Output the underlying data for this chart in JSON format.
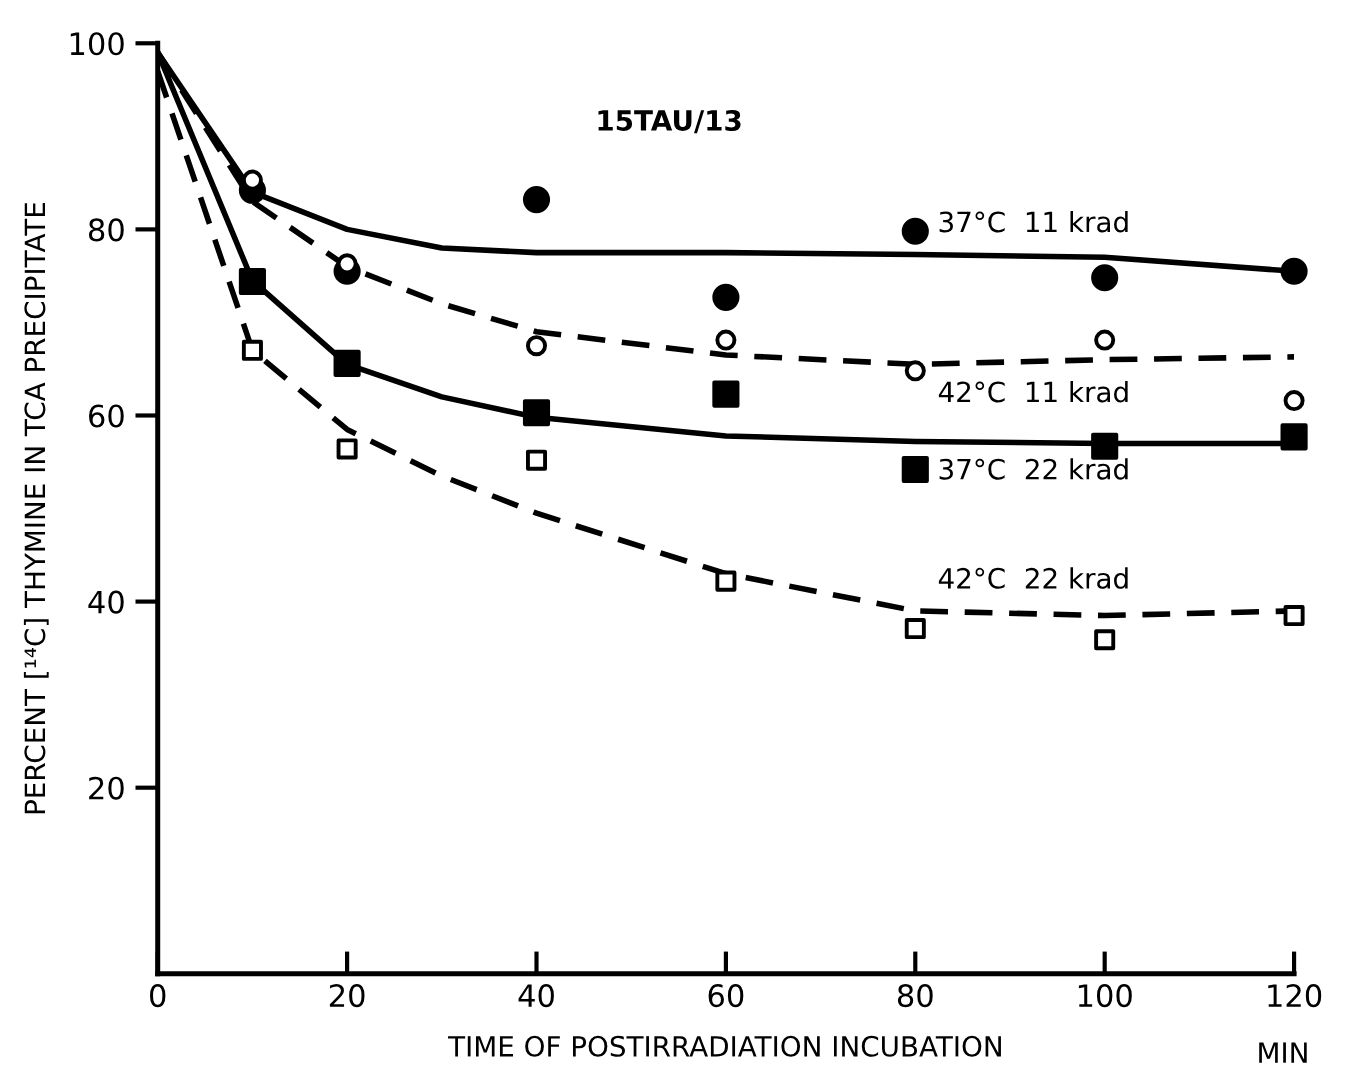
{
  "chart_data": {
    "type": "scatter",
    "xlabel": "TIME OF POSTIRRADIATION INCUBATION",
    "ylabel": "PERCENT [¹⁴C] THYMINE IN TCA PRECIPITATE",
    "xlim": [
      0,
      120
    ],
    "ylim": [
      0,
      100
    ],
    "xticks": [
      0,
      20,
      40,
      60,
      80,
      100,
      120
    ],
    "yticks": [
      20,
      40,
      60,
      80,
      100
    ],
    "grid": false,
    "legend": false,
    "series": [
      {
        "marker": "circle",
        "color": "#000000",
        "x": [
          10,
          20,
          40,
          60,
          80,
          100,
          120
        ],
        "values": [
          84.2,
          75.5,
          83.2,
          72.7,
          79.8,
          74.8,
          75.5
        ]
      },
      {
        "marker": "circle",
        "color": "#ffffff",
        "x": [
          10,
          20,
          40,
          60,
          80,
          100,
          120
        ],
        "values": [
          85.3,
          76.3,
          67.5,
          68.1,
          64.8,
          68.1,
          61.6
        ]
      },
      {
        "marker": "square",
        "color": "#000000",
        "x": [
          10,
          20,
          40,
          60,
          80,
          100,
          120
        ],
        "values": [
          74.4,
          65.6,
          60.3,
          62.3,
          54.2,
          56.7,
          57.7
        ]
      },
      {
        "marker": "square",
        "color": "#ffffff",
        "x": [
          10,
          20,
          40,
          60,
          80,
          100,
          120
        ],
        "values": [
          67.0,
          56.4,
          55.2,
          42.2,
          37.1,
          35.9,
          38.5
        ]
      },
      {
        "type": "line",
        "name": "37°C  11 krad",
        "line_style": "solid",
        "color": "#000000",
        "x": [
          0,
          10,
          20,
          30,
          40,
          60,
          80,
          100,
          120
        ],
        "values": [
          99,
          84,
          80,
          78,
          77.5,
          77.5,
          77.3,
          77,
          75.5
        ]
      },
      {
        "type": "line",
        "name": "42°C  11 krad",
        "line_style": "dashed",
        "color": "#000000",
        "x": [
          0,
          10,
          20,
          30,
          40,
          60,
          80,
          100,
          120
        ],
        "values": [
          99,
          83,
          76,
          72,
          69,
          66.5,
          65.5,
          66,
          66.3
        ]
      },
      {
        "type": "line",
        "name": "37°C  22 krad",
        "line_style": "solid",
        "color": "#000000",
        "x": [
          0,
          10,
          20,
          30,
          40,
          60,
          80,
          100,
          120
        ],
        "values": [
          99,
          74.5,
          65.5,
          62,
          59.8,
          57.8,
          57.2,
          57,
          57
        ]
      },
      {
        "type": "line",
        "name": "42°C  22 krad",
        "line_style": "dashed",
        "color": "#000000",
        "x": [
          0,
          10,
          20,
          30,
          40,
          60,
          80,
          100,
          120
        ],
        "values": [
          97,
          67,
          58.5,
          53.5,
          49.5,
          43,
          39,
          38.5,
          39
        ]
      }
    ],
    "annotations": [
      "15TAU/13",
      "MIN"
    ]
  }
}
